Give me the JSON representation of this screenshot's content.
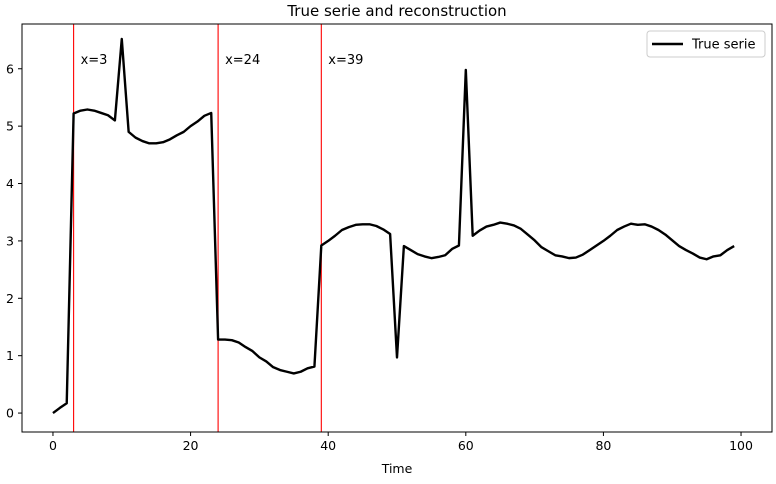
{
  "chart_data": {
    "type": "line",
    "title": "True serie and reconstruction",
    "xlabel": "Time",
    "ylabel": "",
    "xlim": [
      -4.5,
      104.5
    ],
    "ylim": [
      -0.33,
      6.78
    ],
    "xticks": [
      0,
      20,
      40,
      60,
      80,
      100
    ],
    "yticks": [
      0,
      1,
      2,
      3,
      4,
      5,
      6
    ],
    "grid": false,
    "legend_position": "top-right",
    "colors": {
      "series": "#000000",
      "vlines": "#ff0000",
      "axes": "#000000",
      "background": "#ffffff"
    },
    "series": [
      {
        "name": "True serie",
        "color": "#000000",
        "x": [
          0,
          1,
          2,
          3,
          4,
          5,
          6,
          7,
          8,
          9,
          10,
          11,
          12,
          13,
          14,
          15,
          16,
          17,
          18,
          19,
          20,
          21,
          22,
          23,
          24,
          25,
          26,
          27,
          28,
          29,
          30,
          31,
          32,
          33,
          34,
          35,
          36,
          37,
          38,
          39,
          40,
          41,
          42,
          43,
          44,
          45,
          46,
          47,
          48,
          49,
          50,
          51,
          52,
          53,
          54,
          55,
          56,
          57,
          58,
          59,
          60,
          61,
          62,
          63,
          64,
          65,
          66,
          67,
          68,
          69,
          70,
          71,
          72,
          73,
          74,
          75,
          76,
          77,
          78,
          79,
          80,
          81,
          82,
          83,
          84,
          85,
          86,
          87,
          88,
          89,
          90,
          91,
          92,
          93,
          94,
          95,
          96,
          97,
          98,
          99
        ],
        "y": [
          0.0,
          0.09,
          0.17,
          5.22,
          5.27,
          5.29,
          5.27,
          5.23,
          5.19,
          5.1,
          6.52,
          4.9,
          4.8,
          4.74,
          4.7,
          4.7,
          4.72,
          4.77,
          4.84,
          4.9,
          5.0,
          5.08,
          5.18,
          5.23,
          1.28,
          1.28,
          1.27,
          1.23,
          1.15,
          1.08,
          0.97,
          0.9,
          0.8,
          0.75,
          0.72,
          0.69,
          0.72,
          0.78,
          0.81,
          2.92,
          3.0,
          3.09,
          3.19,
          3.24,
          3.28,
          3.29,
          3.29,
          3.26,
          3.2,
          3.12,
          0.97,
          2.91,
          2.84,
          2.77,
          2.73,
          2.7,
          2.72,
          2.75,
          2.86,
          2.92,
          5.98,
          3.09,
          3.18,
          3.25,
          3.28,
          3.32,
          3.3,
          3.27,
          3.21,
          3.11,
          3.01,
          2.89,
          2.82,
          2.75,
          2.73,
          2.7,
          2.71,
          2.76,
          2.84,
          2.92,
          3.0,
          3.09,
          3.19,
          3.25,
          3.3,
          3.28,
          3.29,
          3.25,
          3.19,
          3.11,
          3.01,
          2.91,
          2.84,
          2.78,
          2.71,
          2.68,
          2.73,
          2.75,
          2.84,
          2.91
        ]
      }
    ],
    "vlines": [
      {
        "x": 3,
        "label": "x=3"
      },
      {
        "x": 24,
        "label": "x=24"
      },
      {
        "x": 39,
        "label": "x=39"
      }
    ]
  }
}
